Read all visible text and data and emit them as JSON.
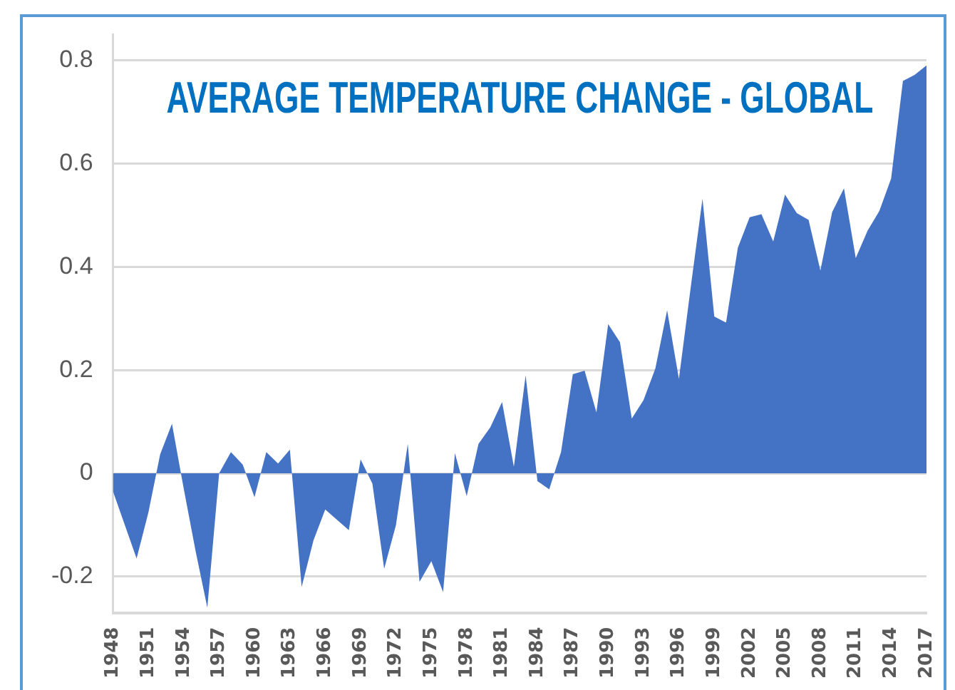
{
  "chart_data": {
    "type": "area",
    "title": "AVERAGE TEMPERATURE CHANGE - GLOBAL",
    "categories": [
      "1948",
      null,
      null,
      "1951",
      null,
      null,
      "1954",
      null,
      null,
      "1957",
      null,
      null,
      "1960",
      null,
      null,
      "1963",
      null,
      null,
      "1966",
      null,
      null,
      "1969",
      null,
      null,
      "1972",
      null,
      null,
      "1975",
      null,
      null,
      "1978",
      null,
      null,
      "1981",
      null,
      null,
      "1984",
      null,
      null,
      "1987",
      null,
      null,
      "1990",
      null,
      null,
      "1993",
      null,
      null,
      "1996",
      null,
      null,
      "1999",
      null,
      null,
      "2002",
      null,
      null,
      "2005",
      null,
      null,
      "2008",
      null,
      null,
      "2011",
      null,
      null,
      "2014",
      null,
      null,
      "2017"
    ],
    "series": [
      {
        "color": "#4472c4",
        "values": [
          -0.035,
          -0.1,
          -0.165,
          -0.076,
          0.037,
          0.096,
          -0.03,
          -0.15,
          -0.26,
          0.0,
          0.041,
          0.017,
          -0.046,
          0.041,
          0.019,
          0.046,
          -0.22,
          -0.13,
          -0.07,
          -0.09,
          -0.11,
          0.027,
          -0.02,
          -0.185,
          -0.1,
          0.057,
          -0.21,
          -0.17,
          -0.23,
          0.039,
          -0.044,
          0.057,
          0.089,
          0.138,
          0.013,
          0.19,
          -0.015,
          -0.031,
          0.041,
          0.192,
          0.199,
          0.118,
          0.289,
          0.254,
          0.106,
          0.142,
          0.203,
          0.316,
          0.183,
          0.36,
          0.532,
          0.304,
          0.292,
          0.437,
          0.496,
          0.502,
          0.449,
          0.54,
          0.504,
          0.491,
          0.393,
          0.506,
          0.552,
          0.417,
          0.47,
          0.508,
          0.571,
          0.76,
          0.772,
          0.79
        ]
      }
    ],
    "ylim": [
      -0.27,
      0.85
    ],
    "yticks": [
      -0.2,
      0,
      0.2,
      0.4,
      0.6,
      0.8
    ],
    "grid": "y",
    "legend": false
  }
}
